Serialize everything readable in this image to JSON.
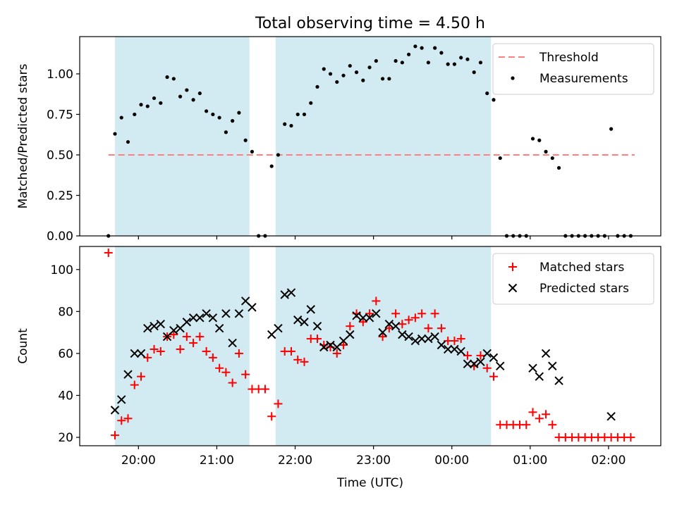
{
  "title": "Total observing time = 4.50 h",
  "colors": {
    "observing_band": "#add8e6",
    "threshold": "#ff7f7f",
    "measurements": "#000000",
    "matched": "#ff0000",
    "predicted": "#000000"
  },
  "chart_data": [
    {
      "type": "scatter",
      "ylabel": "Matched/Predicted stars",
      "xlabel": "",
      "xlim": [
        "19:15",
        "02:40"
      ],
      "ylim": [
        0,
        1.23
      ],
      "yticks": [
        "0.00",
        "0.25",
        "0.50",
        "0.75",
        "1.00"
      ],
      "shaded_intervals": [
        [
          "19:42",
          "21:25"
        ],
        [
          "21:45",
          "00:30"
        ]
      ],
      "legend_position": "top-right",
      "threshold": {
        "name": "Threshold",
        "y": 0.5,
        "x": [
          "19:37",
          "02:20"
        ],
        "style": "dashed"
      },
      "series": [
        {
          "name": "Measurements",
          "marker": "dot",
          "points": [
            [
              "19:37",
              0.0
            ],
            [
              "19:42",
              0.63
            ],
            [
              "19:47",
              0.73
            ],
            [
              "19:52",
              0.58
            ],
            [
              "19:57",
              0.75
            ],
            [
              "20:02",
              0.81
            ],
            [
              "20:07",
              0.8
            ],
            [
              "20:12",
              0.85
            ],
            [
              "20:17",
              0.82
            ],
            [
              "20:22",
              0.98
            ],
            [
              "20:27",
              0.97
            ],
            [
              "20:32",
              0.86
            ],
            [
              "20:37",
              0.9
            ],
            [
              "20:42",
              0.84
            ],
            [
              "20:47",
              0.88
            ],
            [
              "20:52",
              0.77
            ],
            [
              "20:57",
              0.75
            ],
            [
              "21:02",
              0.73
            ],
            [
              "21:07",
              0.64
            ],
            [
              "21:12",
              0.71
            ],
            [
              "21:17",
              0.76
            ],
            [
              "21:22",
              0.59
            ],
            [
              "21:27",
              0.52
            ],
            [
              "21:32",
              0.0
            ],
            [
              "21:37",
              0.0
            ],
            [
              "21:42",
              0.43
            ],
            [
              "21:47",
              0.5
            ],
            [
              "21:52",
              0.69
            ],
            [
              "21:57",
              0.68
            ],
            [
              "22:02",
              0.75
            ],
            [
              "22:07",
              0.75
            ],
            [
              "22:12",
              0.82
            ],
            [
              "22:17",
              0.92
            ],
            [
              "22:22",
              1.03
            ],
            [
              "22:27",
              1.0
            ],
            [
              "22:32",
              0.95
            ],
            [
              "22:37",
              0.99
            ],
            [
              "22:42",
              1.05
            ],
            [
              "22:47",
              1.01
            ],
            [
              "22:52",
              0.96
            ],
            [
              "22:57",
              1.04
            ],
            [
              "23:02",
              1.08
            ],
            [
              "23:07",
              0.97
            ],
            [
              "23:12",
              0.97
            ],
            [
              "23:17",
              1.08
            ],
            [
              "23:22",
              1.07
            ],
            [
              "23:27",
              1.12
            ],
            [
              "23:32",
              1.17
            ],
            [
              "23:37",
              1.16
            ],
            [
              "23:42",
              1.07
            ],
            [
              "23:47",
              1.16
            ],
            [
              "23:52",
              1.13
            ],
            [
              "23:57",
              1.06
            ],
            [
              "00:02",
              1.06
            ],
            [
              "00:07",
              1.1
            ],
            [
              "00:12",
              1.09
            ],
            [
              "00:17",
              1.01
            ],
            [
              "00:22",
              1.07
            ],
            [
              "00:27",
              0.88
            ],
            [
              "00:32",
              0.84
            ],
            [
              "00:37",
              0.48
            ],
            [
              "00:42",
              0.0
            ],
            [
              "00:47",
              0.0
            ],
            [
              "00:52",
              0.0
            ],
            [
              "00:57",
              0.0
            ],
            [
              "01:02",
              0.6
            ],
            [
              "01:07",
              0.59
            ],
            [
              "01:12",
              0.52
            ],
            [
              "01:17",
              0.48
            ],
            [
              "01:22",
              0.42
            ],
            [
              "01:27",
              0.0
            ],
            [
              "01:32",
              0.0
            ],
            [
              "01:37",
              0.0
            ],
            [
              "01:42",
              0.0
            ],
            [
              "01:47",
              0.0
            ],
            [
              "01:52",
              0.0
            ],
            [
              "01:57",
              0.0
            ],
            [
              "02:02",
              0.66
            ],
            [
              "02:07",
              0.0
            ],
            [
              "02:12",
              0.0
            ],
            [
              "02:17",
              0.0
            ]
          ]
        }
      ]
    },
    {
      "type": "scatter",
      "ylabel": "Count",
      "xlabel": "Time (UTC)",
      "xlim": [
        "19:15",
        "02:40"
      ],
      "ylim": [
        16,
        111
      ],
      "yticks": [
        "20",
        "40",
        "60",
        "80",
        "100"
      ],
      "xticks": [
        "20:00",
        "21:00",
        "22:00",
        "23:00",
        "00:00",
        "01:00",
        "02:00"
      ],
      "shaded_intervals": [
        [
          "19:42",
          "21:25"
        ],
        [
          "21:45",
          "00:30"
        ]
      ],
      "legend_position": "top-right",
      "series": [
        {
          "name": "Matched stars",
          "marker": "plus",
          "points": [
            [
              "19:37",
              108
            ],
            [
              "19:42",
              21
            ],
            [
              "19:47",
              28
            ],
            [
              "19:52",
              29
            ],
            [
              "19:57",
              45
            ],
            [
              "20:02",
              49
            ],
            [
              "20:07",
              58
            ],
            [
              "20:12",
              62
            ],
            [
              "20:17",
              61
            ],
            [
              "20:22",
              68
            ],
            [
              "20:27",
              69
            ],
            [
              "20:32",
              62
            ],
            [
              "20:37",
              68
            ],
            [
              "20:42",
              65
            ],
            [
              "20:47",
              68
            ],
            [
              "20:52",
              61
            ],
            [
              "20:57",
              58
            ],
            [
              "21:02",
              53
            ],
            [
              "21:07",
              51
            ],
            [
              "21:12",
              46
            ],
            [
              "21:17",
              60
            ],
            [
              "21:22",
              50
            ],
            [
              "21:27",
              43
            ],
            [
              "21:32",
              43
            ],
            [
              "21:37",
              43
            ],
            [
              "21:42",
              30
            ],
            [
              "21:47",
              36
            ],
            [
              "21:52",
              61
            ],
            [
              "21:57",
              61
            ],
            [
              "22:02",
              57
            ],
            [
              "22:07",
              56
            ],
            [
              "22:12",
              67
            ],
            [
              "22:17",
              67
            ],
            [
              "22:22",
              64
            ],
            [
              "22:27",
              63
            ],
            [
              "22:32",
              60
            ],
            [
              "22:37",
              64
            ],
            [
              "22:42",
              73
            ],
            [
              "22:47",
              79
            ],
            [
              "22:52",
              75
            ],
            [
              "22:57",
              79
            ],
            [
              "23:02",
              85
            ],
            [
              "23:07",
              68
            ],
            [
              "23:12",
              72
            ],
            [
              "23:17",
              79
            ],
            [
              "23:22",
              74
            ],
            [
              "23:27",
              76
            ],
            [
              "23:32",
              77
            ],
            [
              "23:37",
              79
            ],
            [
              "23:42",
              72
            ],
            [
              "23:47",
              79
            ],
            [
              "23:52",
              72
            ],
            [
              "23:57",
              66
            ],
            [
              "00:02",
              66
            ],
            [
              "00:07",
              67
            ],
            [
              "00:12",
              59
            ],
            [
              "00:17",
              54
            ],
            [
              "00:22",
              59
            ],
            [
              "00:27",
              53
            ],
            [
              "00:32",
              49
            ],
            [
              "00:37",
              26
            ],
            [
              "00:42",
              26
            ],
            [
              "00:47",
              26
            ],
            [
              "00:52",
              26
            ],
            [
              "00:57",
              26
            ],
            [
              "01:02",
              32
            ],
            [
              "01:07",
              29
            ],
            [
              "01:12",
              31
            ],
            [
              "01:17",
              26
            ],
            [
              "01:22",
              20
            ],
            [
              "01:27",
              20
            ],
            [
              "01:32",
              20
            ],
            [
              "01:37",
              20
            ],
            [
              "01:42",
              20
            ],
            [
              "01:47",
              20
            ],
            [
              "01:52",
              20
            ],
            [
              "01:57",
              20
            ],
            [
              "02:02",
              20
            ],
            [
              "02:07",
              20
            ],
            [
              "02:12",
              20
            ],
            [
              "02:17",
              20
            ]
          ]
        },
        {
          "name": "Predicted stars",
          "marker": "x",
          "points": [
            [
              "19:42",
              33
            ],
            [
              "19:47",
              38
            ],
            [
              "19:52",
              50
            ],
            [
              "19:57",
              60
            ],
            [
              "20:02",
              60
            ],
            [
              "20:07",
              72
            ],
            [
              "20:12",
              73
            ],
            [
              "20:17",
              74
            ],
            [
              "20:22",
              68
            ],
            [
              "20:27",
              71
            ],
            [
              "20:32",
              72
            ],
            [
              "20:37",
              75
            ],
            [
              "20:42",
              77
            ],
            [
              "20:47",
              77
            ],
            [
              "20:52",
              79
            ],
            [
              "20:57",
              77
            ],
            [
              "21:02",
              72
            ],
            [
              "21:07",
              79
            ],
            [
              "21:12",
              65
            ],
            [
              "21:17",
              79
            ],
            [
              "21:22",
              85
            ],
            [
              "21:27",
              82
            ],
            [
              "21:42",
              69
            ],
            [
              "21:47",
              72
            ],
            [
              "21:52",
              88
            ],
            [
              "21:57",
              89
            ],
            [
              "22:02",
              76
            ],
            [
              "22:07",
              75
            ],
            [
              "22:12",
              81
            ],
            [
              "22:17",
              73
            ],
            [
              "22:22",
              63
            ],
            [
              "22:27",
              64
            ],
            [
              "22:32",
              63
            ],
            [
              "22:37",
              66
            ],
            [
              "22:42",
              69
            ],
            [
              "22:47",
              78
            ],
            [
              "22:52",
              77
            ],
            [
              "22:57",
              77
            ],
            [
              "23:02",
              79
            ],
            [
              "23:07",
              70
            ],
            [
              "23:12",
              74
            ],
            [
              "23:17",
              73
            ],
            [
              "23:22",
              69
            ],
            [
              "23:27",
              68
            ],
            [
              "23:32",
              66
            ],
            [
              "23:37",
              67
            ],
            [
              "23:42",
              67
            ],
            [
              "23:47",
              68
            ],
            [
              "23:52",
              64
            ],
            [
              "23:57",
              62
            ],
            [
              "00:02",
              62
            ],
            [
              "00:07",
              61
            ],
            [
              "00:12",
              55
            ],
            [
              "00:17",
              55
            ],
            [
              "00:22",
              56
            ],
            [
              "00:27",
              60
            ],
            [
              "00:32",
              58
            ],
            [
              "00:37",
              54
            ],
            [
              "01:02",
              53
            ],
            [
              "01:07",
              49
            ],
            [
              "01:12",
              60
            ],
            [
              "01:17",
              54
            ],
            [
              "01:22",
              47
            ],
            [
              "02:02",
              30
            ]
          ]
        }
      ]
    }
  ]
}
